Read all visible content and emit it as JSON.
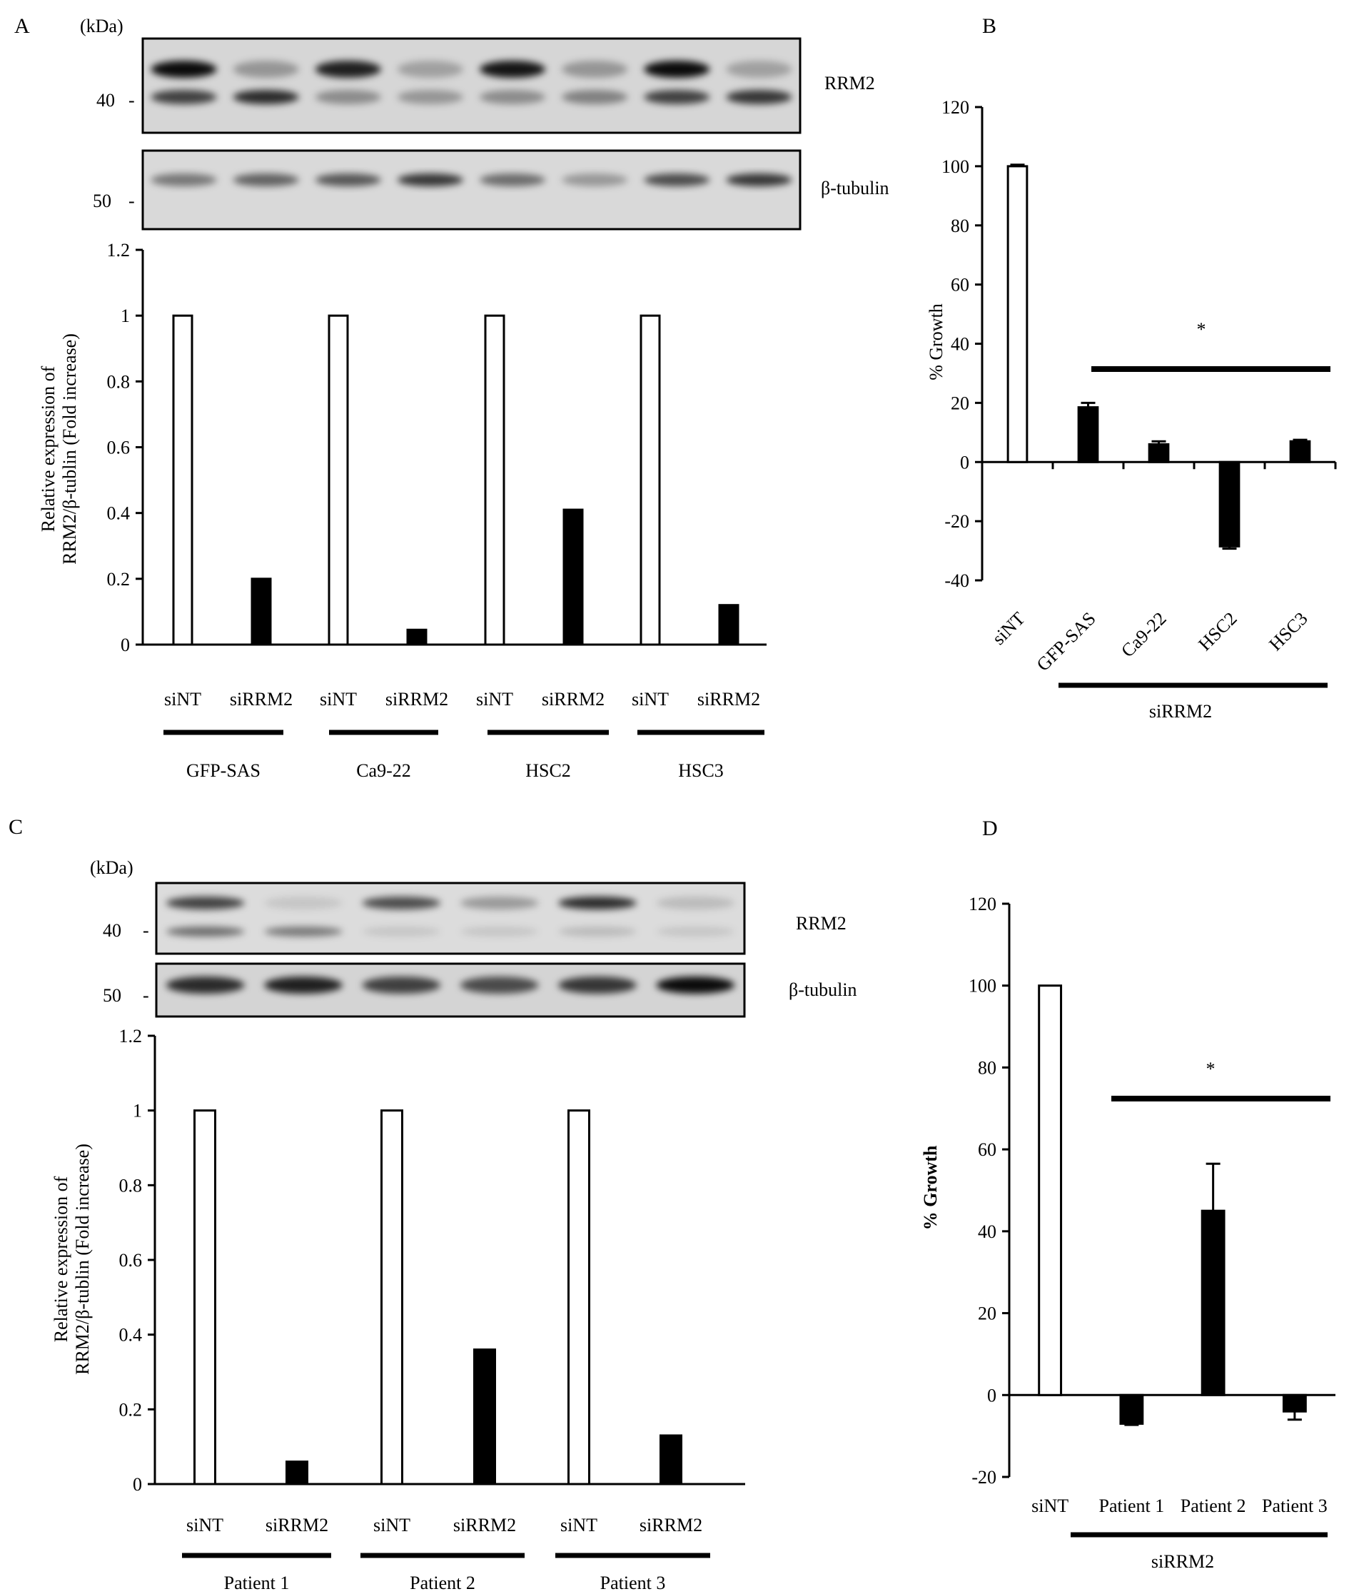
{
  "colors": {
    "control_bar": "#ffffff",
    "knockdown_bar": "#000000",
    "axis": "#000000"
  },
  "panelA": {
    "letter": "A",
    "blot": {
      "kda_label": "(kDa)",
      "marker_40": "40",
      "marker_50": "50",
      "band1_label": "RRM2",
      "band2_label": "β-tubulin"
    },
    "group_lanes": [
      "siNT",
      "siRRM2"
    ],
    "groups": [
      "GFP-SAS",
      "Ca9-22",
      "HSC2",
      "HSC3"
    ]
  },
  "panelB": {
    "letter": "B"
  },
  "panelC": {
    "letter": "C",
    "blot": {
      "kda_label": "(kDa)",
      "marker_40": "40",
      "marker_50": "50",
      "band1_label": "RRM2",
      "band2_label": "β-tubulin"
    },
    "group_lanes": [
      "siNT",
      "siRRM2"
    ],
    "groups": [
      "Patient 1",
      "Patient 2",
      "Patient 3"
    ]
  },
  "panelD": {
    "letter": "D"
  },
  "chart_data": [
    {
      "panel": "A",
      "type": "bar",
      "ylabel_line1": "Relative expression of",
      "ylabel_line2": "RRM2/β-tublin (Fold increase)",
      "ylim": [
        0,
        1.2
      ],
      "yticks": [
        "0",
        "0.2",
        "0.4",
        "0.6",
        "0.8",
        "1",
        "1.2"
      ],
      "categories": [
        "siNT",
        "siRRM2",
        "siNT",
        "siRRM2",
        "siNT",
        "siRRM2",
        "siNT",
        "siRRM2"
      ],
      "groups": [
        "GFP-SAS",
        "Ca9-22",
        "HSC2",
        "HSC3"
      ],
      "values": [
        1,
        0.2,
        1,
        0.045,
        1,
        0.41,
        1,
        0.12
      ],
      "grid": false
    },
    {
      "panel": "B",
      "type": "bar",
      "ylabel": "% Growth",
      "ylim": [
        -40,
        120
      ],
      "yticks": [
        "-40",
        "-20",
        "0",
        "20",
        "40",
        "60",
        "80",
        "100",
        "120"
      ],
      "categories": [
        "siNT",
        "GFP-SAS",
        "Ca9-22",
        "HSC2",
        "HSC3"
      ],
      "values": [
        100,
        18.5,
        6,
        -28.5,
        7
      ],
      "errors": [
        0.5,
        1.5,
        1,
        0.8,
        0.5
      ],
      "significance": "*",
      "bracket_label": "siRRM2",
      "grid": false
    },
    {
      "panel": "C",
      "type": "bar",
      "ylabel_line1": "Relative expression of",
      "ylabel_line2": "RRM2/β-tublin (Fold increase)",
      "ylim": [
        0,
        1.2
      ],
      "yticks": [
        "0",
        "0.2",
        "0.4",
        "0.6",
        "0.8",
        "1",
        "1.2"
      ],
      "categories": [
        "siNT",
        "siRRM2",
        "siNT",
        "siRRM2",
        "siNT",
        "siRRM2"
      ],
      "groups": [
        "Patient 1",
        "Patient 2",
        "Patient 3"
      ],
      "values": [
        1,
        0.06,
        1,
        0.36,
        1,
        0.13
      ],
      "grid": false
    },
    {
      "panel": "D",
      "type": "bar",
      "ylabel": "% Growth",
      "ylim": [
        -20,
        120
      ],
      "yticks": [
        "-20",
        "0",
        "20",
        "40",
        "60",
        "80",
        "100",
        "120"
      ],
      "categories": [
        "siNT",
        "Patient 1",
        "Patient 2",
        "Patient 3"
      ],
      "values": [
        100,
        -7,
        45,
        -4
      ],
      "errors": [
        0,
        0.3,
        11.5,
        2
      ],
      "significance": "*",
      "bracket_label": "siRRM2",
      "grid": false
    }
  ]
}
